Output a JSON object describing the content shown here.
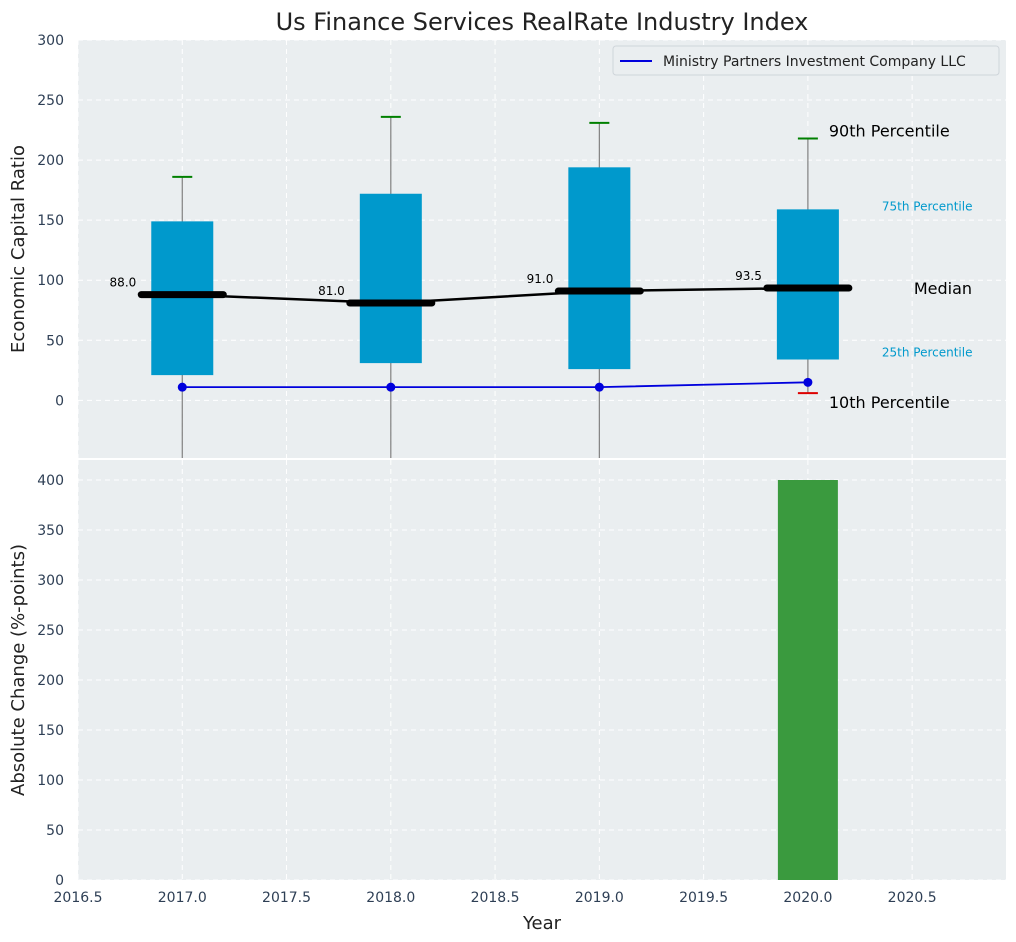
{
  "chart_data": [
    {
      "type": "box",
      "title": "Us Finance Services RealRate Industry Index",
      "ylabel": "Economic Capital Ratio",
      "xlim": [
        2016.5,
        2020.95
      ],
      "ylim": [
        -48,
        300
      ],
      "yticks": [
        0,
        50,
        100,
        150,
        200,
        250,
        300
      ],
      "grid": true,
      "legend_position": "top-right",
      "categories": [
        2017,
        2018,
        2019,
        2020
      ],
      "percentiles": {
        "p10": [
          -48,
          -48,
          -48,
          6
        ],
        "p25": [
          21,
          31,
          26,
          34
        ],
        "median": [
          88.0,
          81.0,
          91.0,
          93.5
        ],
        "p75": [
          149,
          172,
          194,
          159
        ],
        "p90": [
          186,
          236,
          231,
          218
        ]
      },
      "median_labels": [
        "88.0",
        "81.0",
        "91.0",
        "93.5"
      ],
      "series": [
        {
          "name": "Ministry Partners Investment Company LLC",
          "x": [
            2017,
            2018,
            2019,
            2020
          ],
          "values": [
            11,
            11,
            11,
            15
          ]
        }
      ],
      "annotations": {
        "p90": "90th Percentile",
        "p75": "75th Percentile",
        "median": "Median",
        "p25": "25th Percentile",
        "p10": "10th Percentile"
      },
      "colors": {
        "box": "#0099cc",
        "median": "#000000",
        "company": "#0000dd",
        "p90": "#008000",
        "p10": "#dd0000",
        "whisker": "#808080",
        "plot_bg": "#eaeef0",
        "pct_label": "#0099cc"
      }
    },
    {
      "type": "bar",
      "xlabel": "Year",
      "ylabel": "Absolute Change (%-points)",
      "xlim": [
        2016.5,
        2020.95
      ],
      "ylim": [
        0,
        420
      ],
      "yticks": [
        0,
        50,
        100,
        150,
        200,
        250,
        300,
        350,
        400
      ],
      "xticks": [
        "2016.5",
        "2017.0",
        "2017.5",
        "2018.0",
        "2018.5",
        "2019.0",
        "2019.5",
        "2020.0",
        "2020.5"
      ],
      "grid": true,
      "x": [
        2020
      ],
      "values": [
        400
      ],
      "colors": {
        "bar": "#3a9a3e"
      }
    }
  ]
}
